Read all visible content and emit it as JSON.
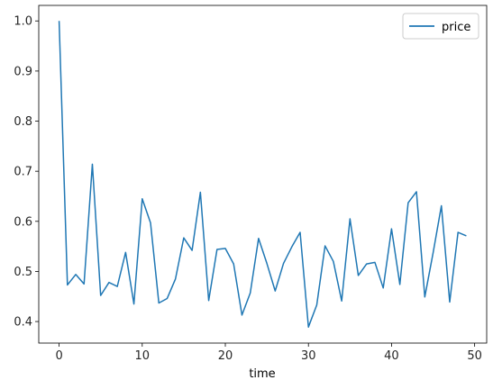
{
  "chart_data": {
    "type": "line",
    "title": "",
    "xlabel": "time",
    "ylabel": "",
    "xlim": [
      -2.45,
      51.45
    ],
    "ylim": [
      0.357,
      1.031
    ],
    "xticks": [
      0,
      10,
      20,
      30,
      40,
      50
    ],
    "yticks": [
      0.4,
      0.5,
      0.6,
      0.7,
      0.8,
      0.9,
      1.0
    ],
    "xtick_labels": [
      "0",
      "10",
      "20",
      "30",
      "40",
      "50"
    ],
    "ytick_labels": [
      "0.4",
      "0.5",
      "0.6",
      "0.7",
      "0.8",
      "0.9",
      "1.0"
    ],
    "grid": false,
    "legend_position": "top-right",
    "series": [
      {
        "name": "price",
        "color": "#1f77b4",
        "x": [
          0,
          1,
          2,
          3,
          4,
          5,
          6,
          7,
          8,
          9,
          10,
          11,
          12,
          13,
          14,
          15,
          16,
          17,
          18,
          19,
          20,
          21,
          22,
          23,
          24,
          25,
          26,
          27,
          28,
          29,
          30,
          31,
          32,
          33,
          34,
          35,
          36,
          37,
          38,
          39,
          40,
          41,
          42,
          43,
          44,
          45,
          46,
          47,
          48,
          49
        ],
        "y": [
          1.0,
          0.473,
          0.494,
          0.475,
          0.714,
          0.452,
          0.478,
          0.47,
          0.538,
          0.435,
          0.645,
          0.597,
          0.437,
          0.446,
          0.485,
          0.567,
          0.542,
          0.658,
          0.442,
          0.544,
          0.546,
          0.515,
          0.413,
          0.457,
          0.566,
          0.516,
          0.461,
          0.516,
          0.549,
          0.578,
          0.389,
          0.433,
          0.551,
          0.52,
          0.441,
          0.605,
          0.492,
          0.515,
          0.518,
          0.467,
          0.585,
          0.474,
          0.637,
          0.659,
          0.449,
          0.537,
          0.631,
          0.439,
          0.578,
          0.571
        ]
      }
    ]
  }
}
